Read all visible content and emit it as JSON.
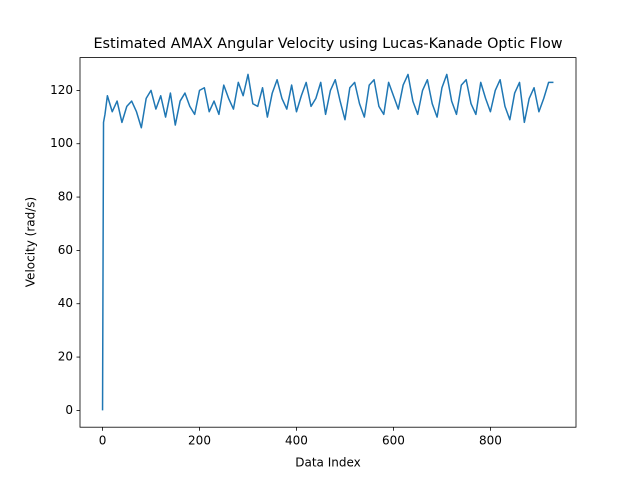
{
  "chart_data": {
    "type": "line",
    "title": "Estimated AMAX Angular Velocity using Lucas-Kanade Optic Flow",
    "xlabel": "Data Index",
    "ylabel": "Velocity (rad/s)",
    "xlim": [
      -46.5,
      976.5
    ],
    "ylim": [
      -6.3,
      132.3
    ],
    "xticks": [
      0,
      200,
      400,
      600,
      800
    ],
    "yticks": [
      0,
      20,
      40,
      60,
      80,
      100,
      120
    ],
    "series": [
      {
        "color": "#1f77b4",
        "x": [
          0,
          2,
          5,
          10,
          20,
          30,
          40,
          50,
          60,
          70,
          80,
          90,
          100,
          110,
          120,
          130,
          140,
          150,
          160,
          170,
          180,
          190,
          200,
          210,
          220,
          230,
          240,
          250,
          260,
          270,
          280,
          290,
          300,
          310,
          320,
          330,
          340,
          350,
          360,
          370,
          380,
          390,
          400,
          410,
          420,
          430,
          440,
          450,
          460,
          470,
          480,
          490,
          500,
          510,
          520,
          530,
          540,
          550,
          560,
          570,
          580,
          590,
          600,
          610,
          620,
          630,
          640,
          650,
          660,
          670,
          680,
          690,
          700,
          710,
          720,
          730,
          740,
          750,
          760,
          770,
          780,
          790,
          800,
          810,
          820,
          830,
          840,
          850,
          860,
          870,
          880,
          890,
          900,
          910,
          920,
          930
        ],
        "values": [
          0,
          108,
          111,
          118,
          112,
          116,
          108,
          114,
          116,
          112,
          106,
          117,
          120,
          113,
          118,
          110,
          119,
          107,
          116,
          119,
          114,
          111,
          120,
          121,
          112,
          116,
          111,
          122,
          117,
          113,
          123,
          118,
          126,
          115,
          114,
          121,
          110,
          119,
          124,
          117,
          113,
          122,
          112,
          118,
          123,
          114,
          117,
          123,
          111,
          120,
          124,
          116,
          109,
          121,
          123,
          115,
          110,
          122,
          124,
          114,
          111,
          123,
          118,
          113,
          122,
          126,
          116,
          111,
          120,
          124,
          115,
          110,
          121,
          126,
          116,
          111,
          122,
          124,
          115,
          111,
          123,
          117,
          112,
          120,
          124,
          114,
          109,
          119,
          123,
          108,
          117,
          121,
          112,
          117,
          123,
          123
        ]
      }
    ]
  }
}
